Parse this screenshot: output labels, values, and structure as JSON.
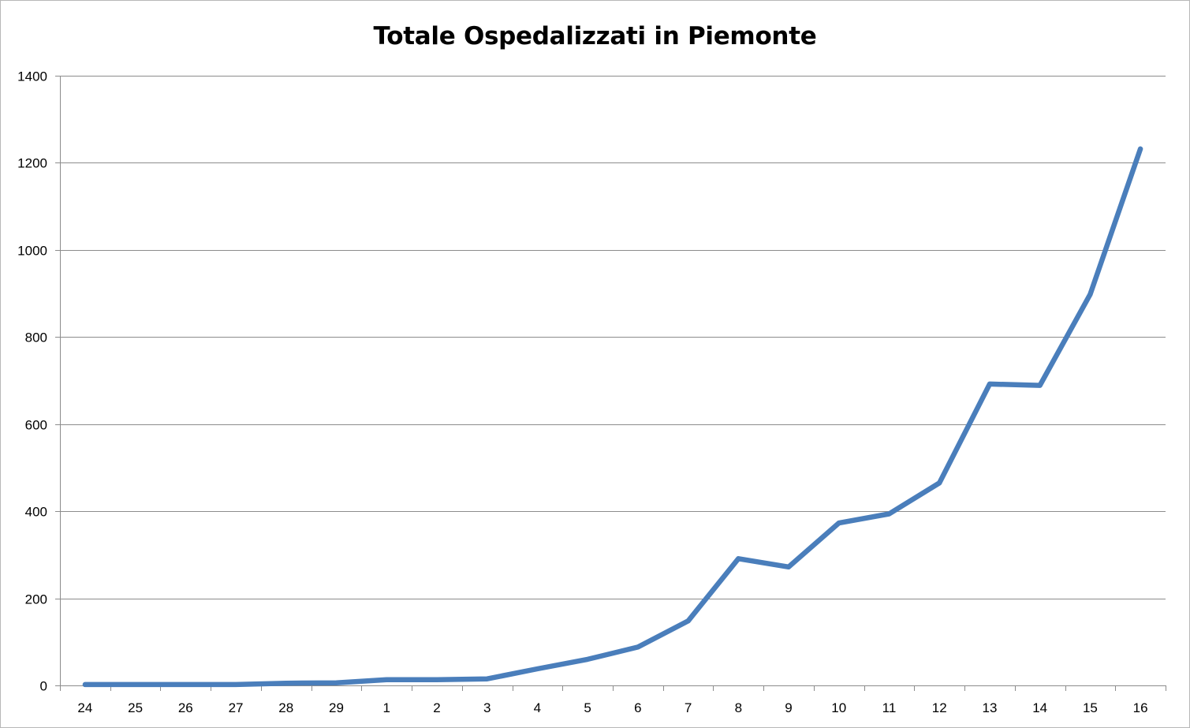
{
  "chart_data": {
    "type": "line",
    "title": "Totale Ospedalizzati in Piemonte",
    "xlabel": "",
    "ylabel": "",
    "categories": [
      "24",
      "25",
      "26",
      "27",
      "28",
      "29",
      "1",
      "2",
      "3",
      "4",
      "5",
      "6",
      "7",
      "8",
      "9",
      "10",
      "11",
      "12",
      "13",
      "14",
      "15",
      "16"
    ],
    "series": [
      {
        "values": [
          2,
          2,
          2,
          2,
          5,
          6,
          13,
          13,
          15,
          38,
          60,
          88,
          148,
          291,
          272,
          373,
          394,
          465,
          692,
          689,
          898,
          1232
        ],
        "color": "#4a7ebb"
      }
    ],
    "ylim": [
      0,
      1400
    ],
    "yticks": [
      0,
      200,
      400,
      600,
      800,
      1000,
      1200,
      1400
    ],
    "grid": "horizontal",
    "legend": "none"
  }
}
